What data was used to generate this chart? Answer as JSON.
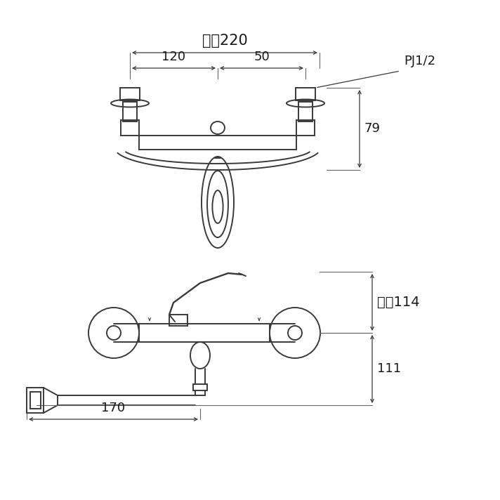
{
  "bg_color": "#ffffff",
  "line_color": "#3a3a3a",
  "text_color": "#1a1a1a",
  "fig_width": 7.12,
  "fig_height": 7.12,
  "top_view": {
    "label_220": "最大220",
    "label_120": "120",
    "label_50": "50",
    "label_79": "79",
    "label_pj": "PJ1/2"
  },
  "side_view": {
    "label_114": "最大114",
    "label_111": "111",
    "label_170": "170"
  }
}
